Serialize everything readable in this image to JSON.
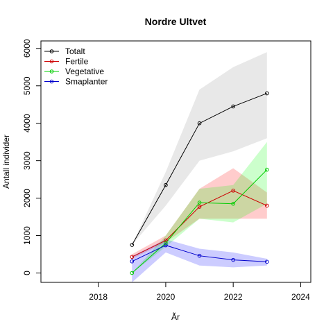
{
  "chart_data": {
    "type": "line",
    "title": "Nordre Ultvet",
    "xlabel": "Ãr",
    "ylabel": "Antall individer",
    "xlim": [
      2016.3,
      2024.3
    ],
    "ylim": [
      -250,
      6200
    ],
    "x_ticks": [
      2018,
      2020,
      2022,
      2024
    ],
    "y_ticks": [
      0,
      1000,
      2000,
      3000,
      4000,
      5000,
      6000
    ],
    "legend_position": "top-left",
    "x": [
      2019,
      2020,
      2021,
      2022,
      2023
    ],
    "series": [
      {
        "name": "Totalt",
        "color": "#000000",
        "band_color": "#bebebe",
        "values": [
          750,
          2350,
          4000,
          4450,
          4800
        ],
        "lower": [
          750,
          1800,
          3000,
          3250,
          3600
        ],
        "upper": [
          750,
          2700,
          4900,
          5500,
          5900
        ]
      },
      {
        "name": "Fertile",
        "color": "#cc0000",
        "band_color": "#ff0000",
        "values": [
          430,
          870,
          1770,
          2200,
          1800
        ],
        "lower": [
          380,
          820,
          1450,
          1450,
          1450
        ],
        "upper": [
          500,
          1000,
          2250,
          2800,
          2150
        ]
      },
      {
        "name": "Vegetative",
        "color": "#00cc00",
        "band_color": "#00ff00",
        "values": [
          0,
          800,
          1880,
          1850,
          2760
        ],
        "lower": [
          0,
          700,
          1450,
          1350,
          1850
        ],
        "upper": [
          0,
          1000,
          2250,
          2350,
          3500
        ]
      },
      {
        "name": "Smaplanter",
        "color": "#0000cc",
        "band_color": "#0000ff",
        "values": [
          310,
          740,
          460,
          350,
          300
        ],
        "lower": [
          -250,
          550,
          200,
          150,
          200
        ],
        "upper": [
          450,
          900,
          650,
          550,
          380
        ]
      }
    ]
  }
}
